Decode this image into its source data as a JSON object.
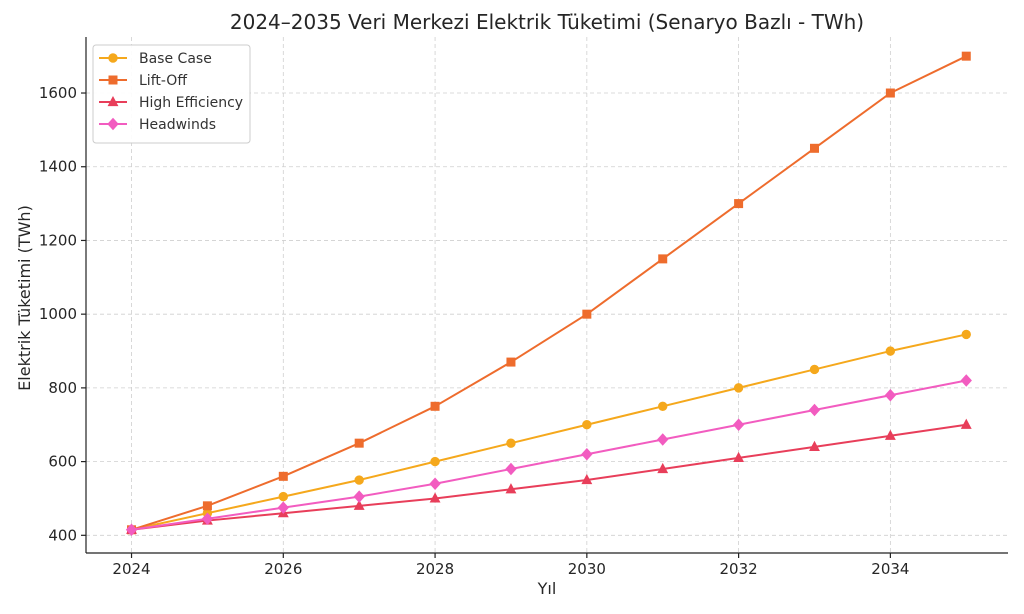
{
  "chart_data": {
    "type": "line",
    "title": "2024–2035 Veri Merkezi Elektrik Tüketimi (Senaryo Bazlı - TWh)",
    "xlabel": "Yıl",
    "ylabel": "Elektrik Tüketimi (TWh)",
    "x": [
      2024,
      2025,
      2026,
      2027,
      2028,
      2029,
      2030,
      2031,
      2032,
      2033,
      2034,
      2035
    ],
    "xlim": [
      2023.4,
      2035.55
    ],
    "ylim": [
      352,
      1752
    ],
    "xticks": [
      2024,
      2026,
      2028,
      2030,
      2032,
      2034
    ],
    "yticks": [
      400,
      600,
      800,
      1000,
      1200,
      1400,
      1600
    ],
    "grid": true,
    "legend_position": "top-left",
    "series": [
      {
        "name": "Base Case",
        "color": "#f5a81c",
        "marker": "circle",
        "values": [
          415,
          460,
          505,
          550,
          600,
          650,
          700,
          750,
          800,
          850,
          900,
          945
        ]
      },
      {
        "name": "Lift-Off",
        "color": "#ee6c2d",
        "marker": "square",
        "values": [
          415,
          480,
          560,
          650,
          750,
          870,
          1000,
          1150,
          1300,
          1450,
          1600,
          1700
        ]
      },
      {
        "name": "High Efficiency",
        "color": "#e83e5a",
        "marker": "triangle",
        "values": [
          415,
          440,
          460,
          480,
          500,
          525,
          550,
          580,
          610,
          640,
          670,
          700
        ]
      },
      {
        "name": "Headwinds",
        "color": "#f25cc0",
        "marker": "diamond",
        "values": [
          415,
          445,
          475,
          505,
          540,
          580,
          620,
          660,
          700,
          740,
          780,
          820
        ]
      }
    ]
  }
}
